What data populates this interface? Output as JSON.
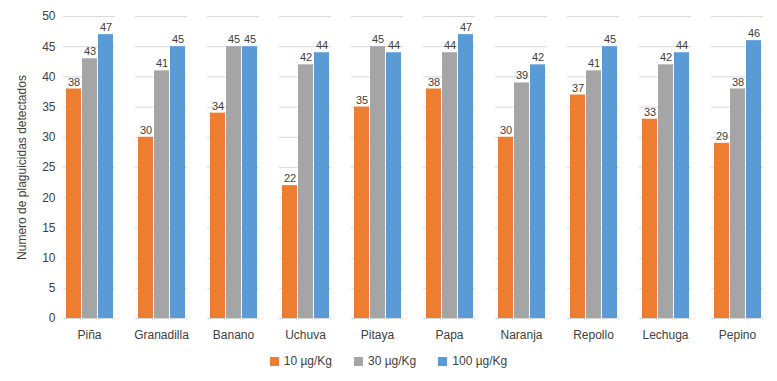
{
  "chart_data": {
    "type": "bar",
    "y_label": "Numero de plaguicidas detectados",
    "categories": [
      "Piña",
      "Granadilla",
      "Banano",
      "Uchuva",
      "Pitaya",
      "Papa",
      "Naranja",
      "Repollo",
      "Lechuga",
      "Pepino"
    ],
    "series": [
      {
        "name": "10 µg/Kg",
        "color": "#ed7d31",
        "values": [
          38,
          30,
          34,
          22,
          35,
          38,
          30,
          37,
          33,
          29
        ]
      },
      {
        "name": "30 µg/Kg",
        "color": "#a5a5a5",
        "values": [
          43,
          41,
          45,
          42,
          45,
          44,
          39,
          41,
          42,
          38
        ]
      },
      {
        "name": "100 µg/Kg",
        "color": "#5b9bd5",
        "values": [
          47,
          45,
          45,
          44,
          44,
          47,
          42,
          45,
          44,
          46
        ]
      }
    ],
    "ylim": [
      0,
      50
    ],
    "yticks": [
      0,
      5,
      10,
      15,
      20,
      25,
      30,
      35,
      40,
      45,
      50
    ],
    "grid": true,
    "data_labels": true,
    "legend": "bottom"
  }
}
